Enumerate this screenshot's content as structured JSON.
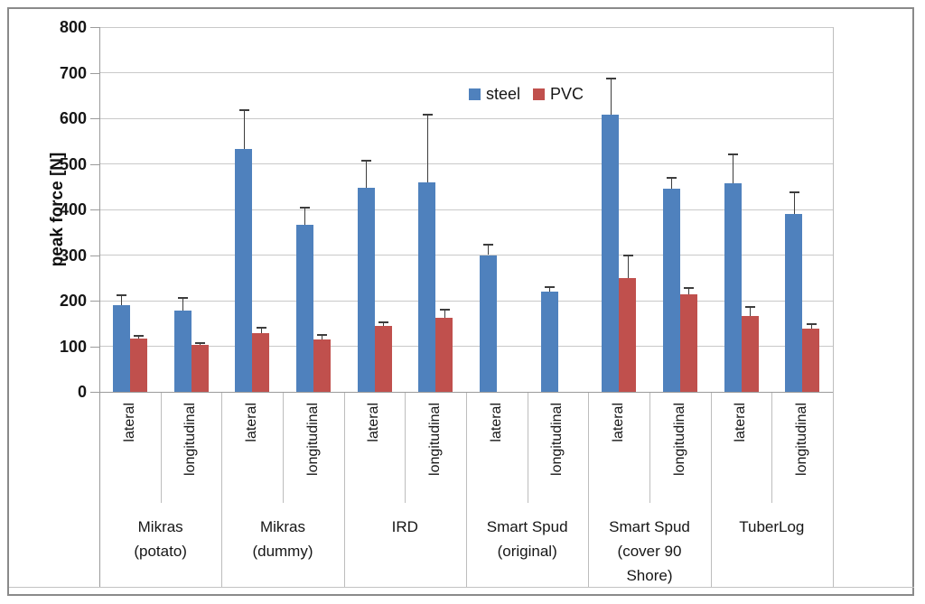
{
  "chart_data": {
    "type": "bar",
    "title": "",
    "ylabel": "peak force [N]",
    "xlabel": "",
    "ylim": [
      0,
      800
    ],
    "yticks": [
      0,
      100,
      200,
      300,
      400,
      500,
      600,
      700,
      800
    ],
    "grid": true,
    "legend_position": "top-center-inside",
    "error_bars": "upper-only",
    "series_colors": {
      "steel": "#4F81BD",
      "PVC": "#C0504D"
    },
    "legend": [
      {
        "name": "steel",
        "color": "#4F81BD"
      },
      {
        "name": "PVC",
        "color": "#C0504D"
      }
    ],
    "groups": [
      {
        "label": "Mikras (potato)",
        "categories": [
          {
            "label": "lateral",
            "values": {
              "steel": 190,
              "PVC": 117
            },
            "err_up": {
              "steel": 22,
              "PVC": 6
            }
          },
          {
            "label": "longitudinal",
            "values": {
              "steel": 178,
              "PVC": 102
            },
            "err_up": {
              "steel": 27,
              "PVC": 5
            }
          }
        ]
      },
      {
        "label": "Mikras (dummy)",
        "categories": [
          {
            "label": "lateral",
            "values": {
              "steel": 533,
              "PVC": 129
            },
            "err_up": {
              "steel": 84,
              "PVC": 12
            }
          },
          {
            "label": "longitudinal",
            "values": {
              "steel": 367,
              "PVC": 115
            },
            "err_up": {
              "steel": 36,
              "PVC": 10
            }
          }
        ]
      },
      {
        "label": "IRD",
        "categories": [
          {
            "label": "lateral",
            "values": {
              "steel": 448,
              "PVC": 145
            },
            "err_up": {
              "steel": 59,
              "PVC": 8
            }
          },
          {
            "label": "longitudinal",
            "values": {
              "steel": 460,
              "PVC": 163
            },
            "err_up": {
              "steel": 147,
              "PVC": 17
            }
          }
        ]
      },
      {
        "label": "Smart Spud (original)",
        "categories": [
          {
            "label": "lateral",
            "values": {
              "steel": 300,
              "PVC": null
            },
            "err_up": {
              "steel": 22,
              "PVC": null
            }
          },
          {
            "label": "longitudinal",
            "values": {
              "steel": 220,
              "PVC": null
            },
            "err_up": {
              "steel": 10,
              "PVC": null
            }
          }
        ]
      },
      {
        "label": "Smart Spud (cover 90 Shore)",
        "categories": [
          {
            "label": "lateral",
            "values": {
              "steel": 608,
              "PVC": 249
            },
            "err_up": {
              "steel": 80,
              "PVC": 51
            }
          },
          {
            "label": "longitudinal",
            "values": {
              "steel": 445,
              "PVC": 214
            },
            "err_up": {
              "steel": 25,
              "PVC": 14
            }
          }
        ]
      },
      {
        "label": "TuberLog",
        "categories": [
          {
            "label": "lateral",
            "values": {
              "steel": 457,
              "PVC": 166
            },
            "err_up": {
              "steel": 63,
              "PVC": 20
            }
          },
          {
            "label": "longitudinal",
            "values": {
              "steel": 391,
              "PVC": 139
            },
            "err_up": {
              "steel": 47,
              "PVC": 9
            }
          }
        ]
      }
    ]
  }
}
